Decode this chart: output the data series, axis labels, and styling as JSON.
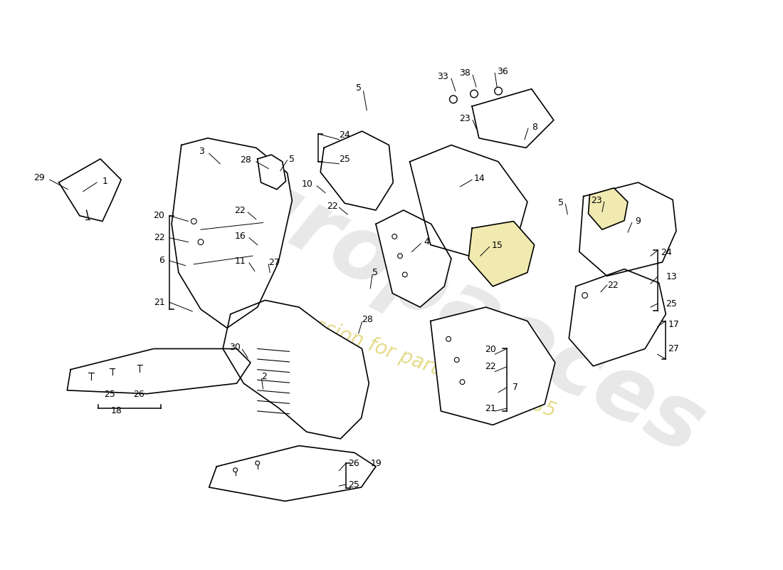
{
  "background_color": "#ffffff",
  "line_color": "#000000",
  "label_fontsize": 9,
  "watermark_color": "#cccccc",
  "watermark_yellow": "#e8d870"
}
